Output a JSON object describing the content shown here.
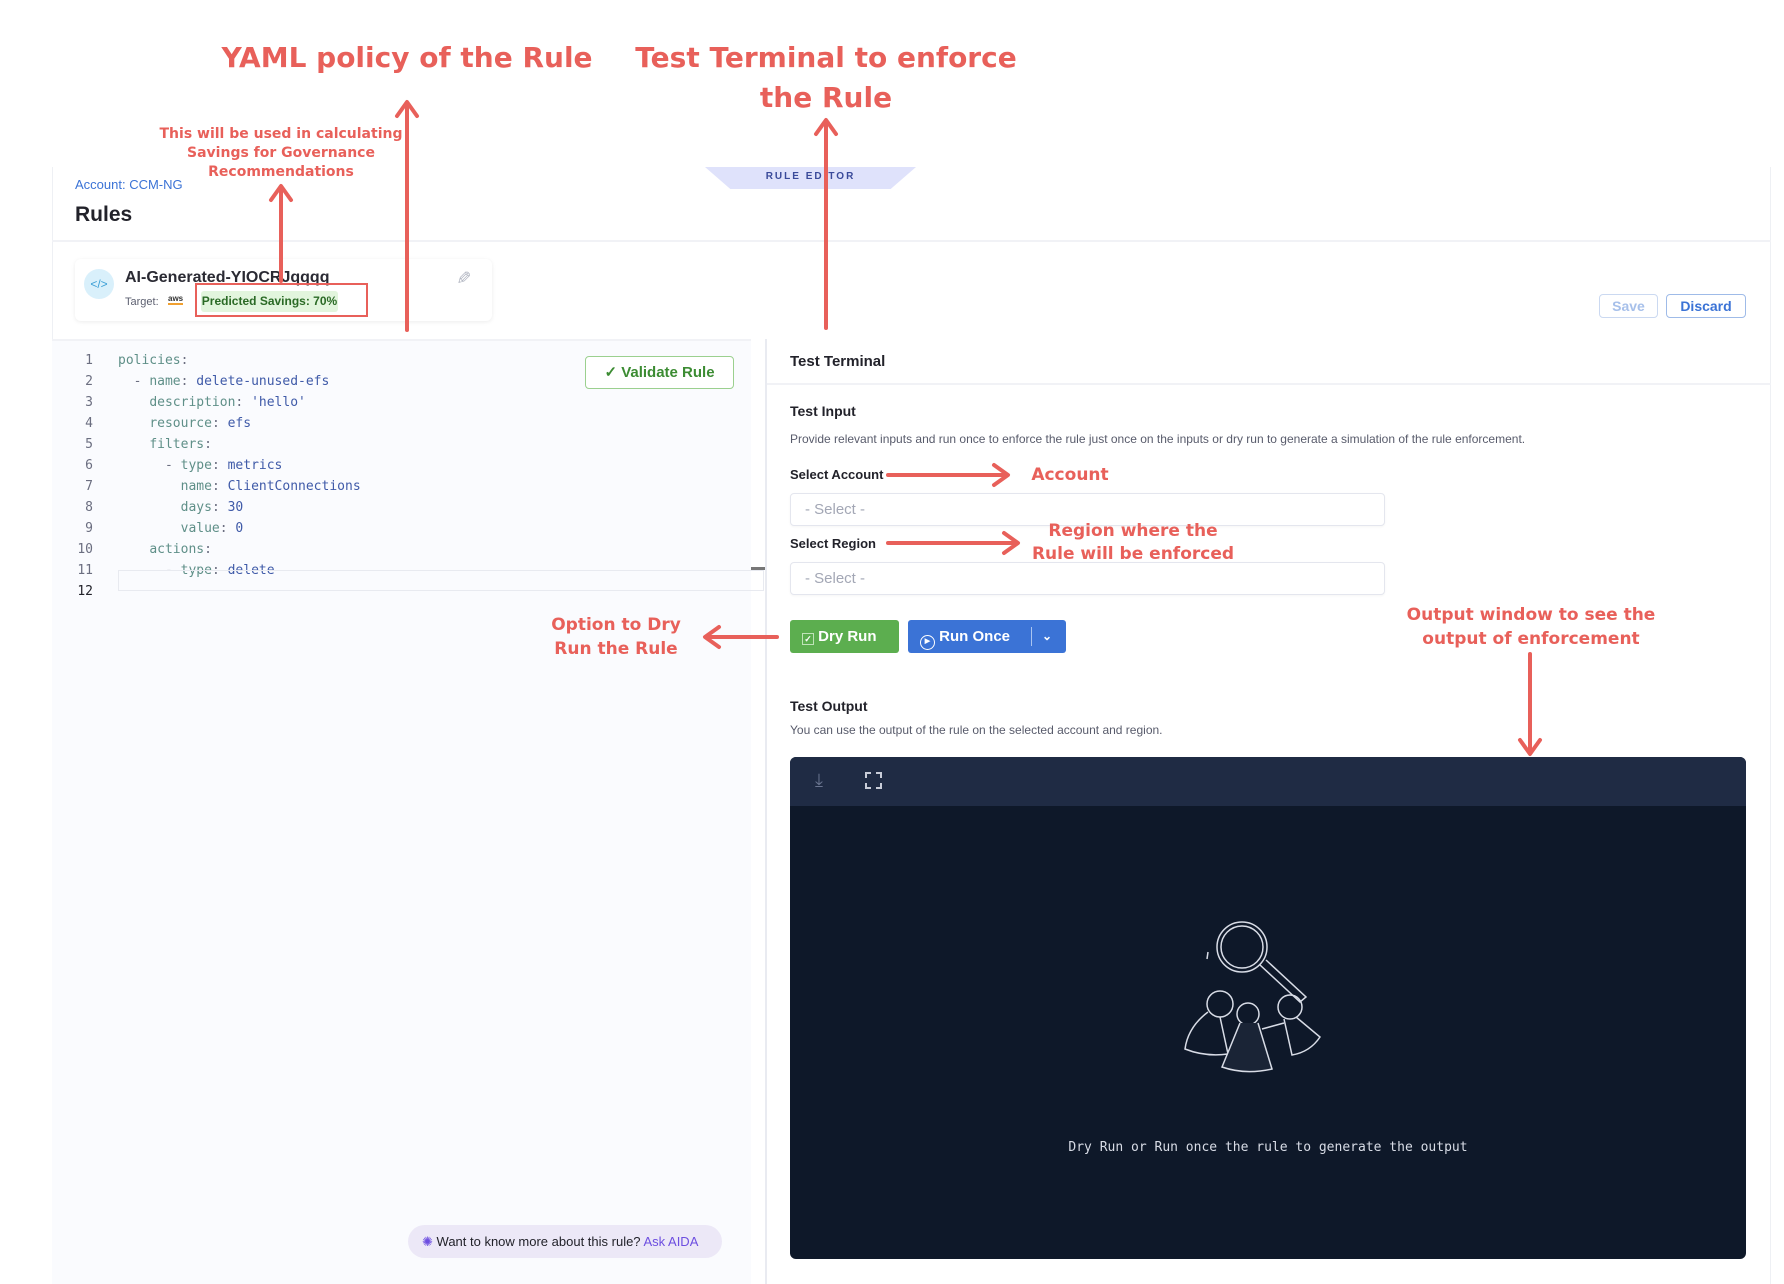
{
  "annotations": {
    "yaml_title": "YAML policy of the Rule",
    "terminal_title_1": "Test Terminal to enforce",
    "terminal_title_2": "the Rule",
    "savings_note_1": "This will be used in calculating",
    "savings_note_2": "Savings for Governance",
    "savings_note_3": "Recommendations",
    "account": "Account",
    "region_1": "Region where the",
    "region_2": "Rule will be enforced",
    "dryrun_1": "Option to Dry",
    "dryrun_2": "Run the Rule",
    "output_1": "Output window to see the",
    "output_2": "output of enforcement",
    "color": "#e8605a"
  },
  "header": {
    "account": "Account: CCM-NG",
    "title": "Rules",
    "tab": "RULE EDITOR"
  },
  "rule": {
    "name": "AI-Generated-YIOCRJqqqq",
    "target_label": "Target:",
    "target_icon": "aws-logo",
    "savings": "Predicted Savings: 70%"
  },
  "actions": {
    "save": "Save",
    "discard": "Discard"
  },
  "editor": {
    "validate": "Validate Rule",
    "lines": [
      {
        "n": "1",
        "indent": "",
        "dash": "",
        "key": "policies",
        "val": ""
      },
      {
        "n": "2",
        "indent": "  ",
        "dash": "- ",
        "key": "name",
        "val": "delete-unused-efs"
      },
      {
        "n": "3",
        "indent": "    ",
        "dash": "",
        "key": "description",
        "val": "'hello'"
      },
      {
        "n": "4",
        "indent": "    ",
        "dash": "",
        "key": "resource",
        "val": "efs"
      },
      {
        "n": "5",
        "indent": "    ",
        "dash": "",
        "key": "filters",
        "val": ""
      },
      {
        "n": "6",
        "indent": "      ",
        "dash": "- ",
        "key": "type",
        "val": "metrics"
      },
      {
        "n": "7",
        "indent": "        ",
        "dash": "",
        "key": "name",
        "val": "ClientConnections"
      },
      {
        "n": "8",
        "indent": "        ",
        "dash": "",
        "key": "days",
        "val": "30"
      },
      {
        "n": "9",
        "indent": "        ",
        "dash": "",
        "key": "value",
        "val": "0"
      },
      {
        "n": "10",
        "indent": "    ",
        "dash": "",
        "key": "actions",
        "val": ""
      },
      {
        "n": "11",
        "indent": "      ",
        "dash": "- ",
        "key": "type",
        "val": "delete"
      },
      {
        "n": "12",
        "indent": "",
        "dash": "",
        "key": "",
        "val": ""
      }
    ],
    "aida_text": "Want to know more about this rule?",
    "aida_link": "Ask AIDA"
  },
  "terminal": {
    "title": "Test Terminal",
    "input_title": "Test Input",
    "input_desc": "Provide relevant inputs and run once to enforce the rule just once on the inputs or dry run to generate a simulation of the rule enforcement.",
    "account_label": "Select Account",
    "account_placeholder": "- Select -",
    "region_label": "Select Region",
    "region_placeholder": "- Select -",
    "dry_run": "Dry Run",
    "run_once": "Run Once",
    "output_title": "Test Output",
    "output_desc": "You can use the output of the rule on the selected account and region.",
    "empty_message": "Dry Run or Run once the rule to generate the output",
    "colors": {
      "dry_run": "#5cae4f",
      "run_once": "#3b73d6",
      "terminal_bg": "#0e1829",
      "terminal_bar": "#1f2b44"
    }
  }
}
